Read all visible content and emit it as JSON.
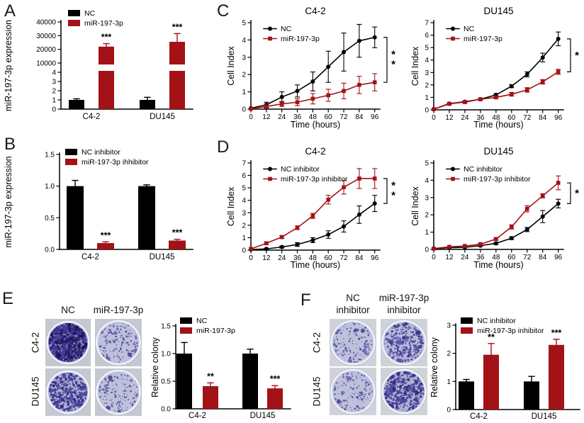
{
  "figure": {
    "background": "#ffffff"
  },
  "colors": {
    "black": "#000000",
    "red": "#a31216"
  },
  "panels": {
    "A": {
      "letter": "A"
    },
    "B": {
      "letter": "B"
    },
    "C": {
      "letter": "C"
    },
    "D": {
      "letter": "D"
    },
    "E": {
      "letter": "E"
    },
    "F": {
      "letter": "F"
    }
  },
  "chart_data": [
    {
      "id": "A",
      "type": "bar",
      "panel": "A",
      "ylabel": "miR-197-3p expression",
      "categories": [
        "C4-2",
        "DU145"
      ],
      "series": [
        {
          "name": "NC",
          "color": "black",
          "values": [
            1,
            1
          ],
          "errors": [
            0.12,
            0.28
          ]
        },
        {
          "name": "miR-197-3p",
          "color": "red",
          "values": [
            22000,
            25500
          ],
          "errors": [
            2200,
            6000
          ]
        }
      ],
      "sig": [
        "***",
        "***"
      ],
      "axis_break": {
        "lower": {
          "lim": [
            0,
            4
          ],
          "ticks": [
            0,
            1,
            2,
            3,
            4
          ],
          "tick_labels": [
            "0",
            "1",
            "2",
            "3",
            "4"
          ]
        },
        "upper": {
          "lim": [
            10000,
            40000
          ],
          "ticks": [
            10000,
            20000,
            30000,
            40000
          ],
          "tick_labels": [
            "10000",
            "20000",
            "30000",
            "40000"
          ]
        }
      }
    },
    {
      "id": "B",
      "type": "bar",
      "panel": "B",
      "ylabel": "miR-197-3p expression",
      "categories": [
        "C4-2",
        "DU145"
      ],
      "series": [
        {
          "name": "NC inhibitor",
          "color": "black",
          "values": [
            1.0,
            1.0
          ],
          "errors": [
            0.09,
            0.02
          ]
        },
        {
          "name": "miR-197-3p ihhibitor",
          "color": "red",
          "values": [
            0.1,
            0.14
          ],
          "errors": [
            0.02,
            0.02
          ]
        }
      ],
      "ylim": [
        0,
        1.5
      ],
      "yticks": [
        0,
        0.5,
        1.0,
        1.5
      ],
      "ytick_labels": [
        "0.0",
        "0.5",
        "1.0",
        "1.5"
      ],
      "sig": [
        "***",
        "***"
      ]
    },
    {
      "id": "C1",
      "type": "line",
      "panel": "C",
      "title": "C4-2",
      "xlabel": "Time (hours)",
      "ylabel": "Cell Index",
      "x": [
        0,
        12,
        24,
        36,
        48,
        60,
        72,
        84,
        96
      ],
      "ylim": [
        0,
        5
      ],
      "yticks": [
        0,
        1,
        2,
        3,
        4,
        5
      ],
      "series": [
        {
          "name": "NC",
          "color": "black",
          "marker": "circle",
          "values": [
            0.05,
            0.25,
            0.7,
            1.05,
            1.6,
            2.45,
            3.3,
            3.95,
            4.15
          ],
          "errors": [
            0.03,
            0.15,
            0.3,
            0.35,
            0.55,
            0.9,
            1.1,
            0.95,
            0.6
          ]
        },
        {
          "name": "miR-197-3p",
          "color": "red",
          "marker": "square",
          "values": [
            0.02,
            0.15,
            0.3,
            0.4,
            0.6,
            0.8,
            1.05,
            1.4,
            1.55
          ],
          "errors": [
            0.02,
            0.1,
            0.15,
            0.2,
            0.3,
            0.35,
            0.45,
            0.5,
            0.5
          ]
        }
      ],
      "sig": "**"
    },
    {
      "id": "C2",
      "type": "line",
      "panel": "C",
      "title": "DU145",
      "xlabel": "Time (hours)",
      "ylabel": "Cell Index",
      "x": [
        0,
        12,
        24,
        36,
        48,
        60,
        72,
        84,
        96
      ],
      "ylim": [
        0,
        7
      ],
      "yticks": [
        0,
        1,
        2,
        3,
        4,
        5,
        6,
        7
      ],
      "series": [
        {
          "name": "NC",
          "color": "black",
          "marker": "circle",
          "values": [
            0.05,
            0.5,
            0.65,
            0.85,
            1.2,
            1.9,
            2.85,
            4.2,
            5.7
          ],
          "errors": [
            0.02,
            0.06,
            0.06,
            0.06,
            0.1,
            0.12,
            0.2,
            0.35,
            0.55
          ]
        },
        {
          "name": "miR-197-3p",
          "color": "red",
          "marker": "square",
          "values": [
            0.05,
            0.48,
            0.62,
            0.85,
            1.0,
            1.25,
            1.6,
            2.25,
            3.05
          ],
          "errors": [
            0.02,
            0.06,
            0.06,
            0.06,
            0.08,
            0.15,
            0.18,
            0.18,
            0.2
          ]
        }
      ],
      "sig": "*"
    },
    {
      "id": "D1",
      "type": "line",
      "panel": "D",
      "title": "C4-2",
      "xlabel": "Time (hours)",
      "ylabel": "Cell Index",
      "x": [
        0,
        12,
        24,
        36,
        48,
        60,
        72,
        84,
        96
      ],
      "ylim": [
        0,
        7
      ],
      "yticks": [
        0,
        1,
        2,
        3,
        4,
        5,
        6,
        7
      ],
      "series": [
        {
          "name": "NC inhibitor",
          "color": "black",
          "marker": "circle",
          "values": [
            0.05,
            0.1,
            0.25,
            0.45,
            0.8,
            1.25,
            1.9,
            2.85,
            3.75
          ],
          "errors": [
            0.02,
            0.05,
            0.08,
            0.15,
            0.2,
            0.3,
            0.45,
            0.7,
            0.65
          ]
        },
        {
          "name": "miR-197-3p inhibitor",
          "color": "red",
          "marker": "square",
          "values": [
            0.1,
            0.55,
            1.05,
            1.8,
            2.75,
            4.05,
            5.05,
            5.75,
            5.75
          ],
          "errors": [
            0.03,
            0.1,
            0.12,
            0.15,
            0.2,
            0.35,
            0.55,
            0.8,
            0.8
          ]
        }
      ],
      "sig": "**"
    },
    {
      "id": "D2",
      "type": "line",
      "panel": "D",
      "title": "DU145",
      "xlabel": "Time (hours)",
      "ylabel": "Cell Index",
      "x": [
        0,
        12,
        24,
        36,
        48,
        60,
        72,
        84,
        96
      ],
      "ylim": [
        0,
        5
      ],
      "yticks": [
        0,
        1,
        2,
        3,
        4,
        5
      ],
      "series": [
        {
          "name": "NC inhibitor",
          "color": "black",
          "marker": "circle",
          "values": [
            0.05,
            0.1,
            0.12,
            0.22,
            0.35,
            0.65,
            1.15,
            1.9,
            2.65
          ],
          "errors": [
            0.02,
            0.03,
            0.04,
            0.05,
            0.06,
            0.08,
            0.12,
            0.35,
            0.25
          ]
        },
        {
          "name": "miR-197-3p inhibitor",
          "color": "red",
          "marker": "square",
          "values": [
            0.05,
            0.15,
            0.2,
            0.3,
            0.6,
            1.3,
            2.35,
            3.1,
            3.85
          ],
          "errors": [
            0.02,
            0.03,
            0.04,
            0.05,
            0.07,
            0.12,
            0.18,
            0.12,
            0.4
          ]
        }
      ],
      "sig": "*"
    },
    {
      "id": "E",
      "type": "bar",
      "panel": "E",
      "ylabel": "Relative colony",
      "categories": [
        "C4-2",
        "DU145"
      ],
      "series": [
        {
          "name": "NC",
          "color": "black",
          "values": [
            1.0,
            1.0
          ],
          "errors": [
            0.2,
            0.08
          ]
        },
        {
          "name": "miR-197-3p",
          "color": "red",
          "values": [
            0.41,
            0.37
          ],
          "errors": [
            0.06,
            0.05
          ]
        }
      ],
      "ylim": [
        0,
        1.5
      ],
      "yticks": [
        0,
        0.5,
        1.0,
        1.5
      ],
      "ytick_labels": [
        "0.0",
        "0.5",
        "1.0",
        "1.5"
      ],
      "sig": [
        "**",
        "***"
      ]
    },
    {
      "id": "F",
      "type": "bar",
      "panel": "F",
      "ylabel": "Relative colony",
      "categories": [
        "C4-2",
        "DU145"
      ],
      "series": [
        {
          "name": "NC inhibitor",
          "color": "black",
          "values": [
            1.0,
            1.0
          ],
          "errors": [
            0.07,
            0.18
          ]
        },
        {
          "name": "miR-197-3p inhibitor",
          "color": "red",
          "values": [
            1.95,
            2.3
          ],
          "errors": [
            0.4,
            0.2
          ]
        }
      ],
      "ylim": [
        0,
        3
      ],
      "yticks": [
        0,
        1,
        2,
        3
      ],
      "ytick_labels": [
        "0",
        "1",
        "2",
        "3"
      ],
      "sig": [
        "**",
        "***"
      ]
    }
  ],
  "colony_assays": {
    "E": {
      "col_headers": [
        "NC",
        "miR-197-3p"
      ],
      "row_labels": [
        "C4-2",
        "DU145"
      ],
      "dishes": [
        {
          "row": "C4-2",
          "col": "NC",
          "density": "very-high"
        },
        {
          "row": "C4-2",
          "col": "miR-197-3p",
          "density": "low"
        },
        {
          "row": "DU145",
          "col": "NC",
          "density": "high"
        },
        {
          "row": "DU145",
          "col": "miR-197-3p",
          "density": "low"
        }
      ]
    },
    "F": {
      "col_headers": [
        {
          "line1": "NC",
          "line2": "inhibitor"
        },
        {
          "line1": "miR-197-3p",
          "line2": "inhibitor"
        }
      ],
      "row_labels": [
        "C4-2",
        "DU145"
      ],
      "dishes": [
        {
          "row": "C4-2",
          "col": "NC inhibitor",
          "density": "low"
        },
        {
          "row": "C4-2",
          "col": "miR-197-3p inhibitor",
          "density": "medium"
        },
        {
          "row": "DU145",
          "col": "NC inhibitor",
          "density": "low"
        },
        {
          "row": "DU145",
          "col": "miR-197-3p inhibitor",
          "density": "high"
        }
      ]
    }
  }
}
